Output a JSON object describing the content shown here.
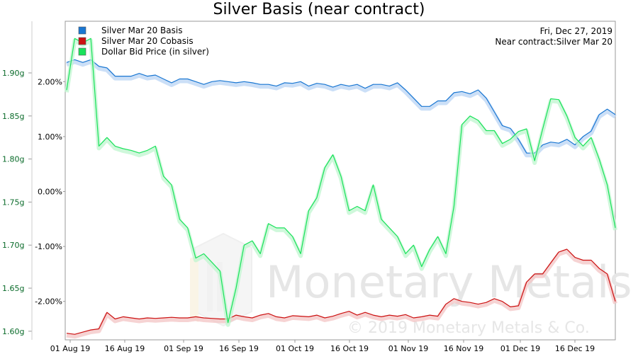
{
  "chart_data": {
    "type": "line",
    "title": "Silver Basis (near contract)",
    "info": {
      "date": "Fri, Dec 27, 2019",
      "contract": "Near contract:Silver Mar 20"
    },
    "watermark": {
      "brand": "Monetary Metals",
      "copyright": "© 2019 Monetary Metals & Co."
    },
    "x_ticks": [
      "01 Aug 19",
      "16 Aug 19",
      "01 Sep 19",
      "16 Sep 19",
      "01 Oct 19",
      "16 Oct 19",
      "01 Nov 19",
      "16 Nov 19",
      "01 Dec 19",
      "16 Dec 19"
    ],
    "left_axis": {
      "ticks": [
        "1.90g",
        "1.85g",
        "1.80g",
        "1.75g",
        "1.70g",
        "1.65g",
        "1.60g"
      ],
      "values": [
        1.9,
        1.85,
        1.8,
        1.75,
        1.7,
        1.65,
        1.6
      ],
      "ylim": [
        1.59,
        1.96
      ]
    },
    "mid_axis": {
      "ticks": [
        "2.00%",
        "1.00%",
        "0.00%",
        "-1.00%",
        "-2.00%"
      ],
      "values": [
        2.0,
        1.0,
        0.0,
        -1.0,
        -2.0
      ],
      "ylim": [
        -2.7,
        3.1
      ]
    },
    "legend_position": "top-left",
    "series": [
      {
        "name": "Silver Mar 20 Basis",
        "color": "#1a77d2",
        "glow": "#b9d4f4",
        "axis": "mid",
        "values": [
          2.35,
          2.4,
          2.35,
          2.4,
          2.28,
          2.25,
          2.1,
          2.1,
          2.1,
          2.15,
          2.1,
          2.12,
          2.05,
          1.98,
          2.05,
          2.05,
          2.0,
          1.95,
          2.0,
          2.02,
          2.0,
          1.98,
          2.0,
          1.98,
          1.95,
          1.95,
          1.92,
          1.98,
          1.97,
          2.0,
          1.92,
          1.97,
          1.95,
          1.9,
          1.95,
          1.92,
          1.95,
          1.88,
          1.95,
          1.95,
          1.92,
          1.98,
          1.85,
          1.7,
          1.55,
          1.55,
          1.65,
          1.65,
          1.8,
          1.82,
          1.78,
          1.85,
          1.7,
          1.45,
          1.2,
          1.15,
          0.95,
          0.7,
          0.7,
          0.85,
          0.9,
          0.88,
          0.95,
          0.85,
          1.0,
          1.1,
          1.4,
          1.5,
          1.4
        ]
      },
      {
        "name": "Silver Mar 20 Cobasis",
        "color": "#cc1111",
        "glow": "#f3c4c4",
        "axis": "mid",
        "values": [
          -2.58,
          -2.6,
          -2.56,
          -2.52,
          -2.5,
          -2.2,
          -2.32,
          -2.28,
          -2.3,
          -2.32,
          -2.3,
          -2.31,
          -2.3,
          -2.29,
          -2.3,
          -2.3,
          -2.28,
          -2.3,
          -2.31,
          -2.32,
          -2.32,
          -2.25,
          -2.28,
          -2.3,
          -2.25,
          -2.22,
          -2.28,
          -2.3,
          -2.26,
          -2.27,
          -2.28,
          -2.25,
          -2.3,
          -2.27,
          -2.22,
          -2.18,
          -2.25,
          -2.2,
          -2.25,
          -2.28,
          -2.25,
          -2.27,
          -2.24,
          -2.3,
          -2.28,
          -2.25,
          -2.27,
          -2.05,
          -1.95,
          -2.0,
          -2.02,
          -2.05,
          -2.02,
          -1.95,
          -2.0,
          -2.1,
          -2.08,
          -1.65,
          -1.5,
          -1.5,
          -1.3,
          -1.1,
          -1.05,
          -1.2,
          -1.25,
          -1.25,
          -1.4,
          -1.5,
          -2.0
        ]
      },
      {
        "name": "Dollar Bid Price (in silver)",
        "color": "#19e25a",
        "glow": "#bff5cf",
        "axis": "left",
        "values": [
          1.88,
          1.94,
          1.935,
          1.94,
          1.815,
          1.825,
          1.815,
          1.812,
          1.81,
          1.807,
          1.81,
          1.815,
          1.78,
          1.77,
          1.73,
          1.72,
          1.685,
          1.69,
          1.68,
          1.67,
          1.61,
          1.65,
          1.7,
          1.705,
          1.69,
          1.725,
          1.72,
          1.72,
          1.71,
          1.69,
          1.74,
          1.755,
          1.79,
          1.805,
          1.78,
          1.74,
          1.745,
          1.74,
          1.77,
          1.73,
          1.72,
          1.71,
          1.69,
          1.7,
          1.675,
          1.695,
          1.71,
          1.69,
          1.745,
          1.84,
          1.85,
          1.845,
          1.833,
          1.833,
          1.818,
          1.823,
          1.832,
          1.835,
          1.798,
          1.835,
          1.87,
          1.869,
          1.85,
          1.825,
          1.815,
          1.825,
          1.8,
          1.77,
          1.72
        ]
      }
    ]
  }
}
